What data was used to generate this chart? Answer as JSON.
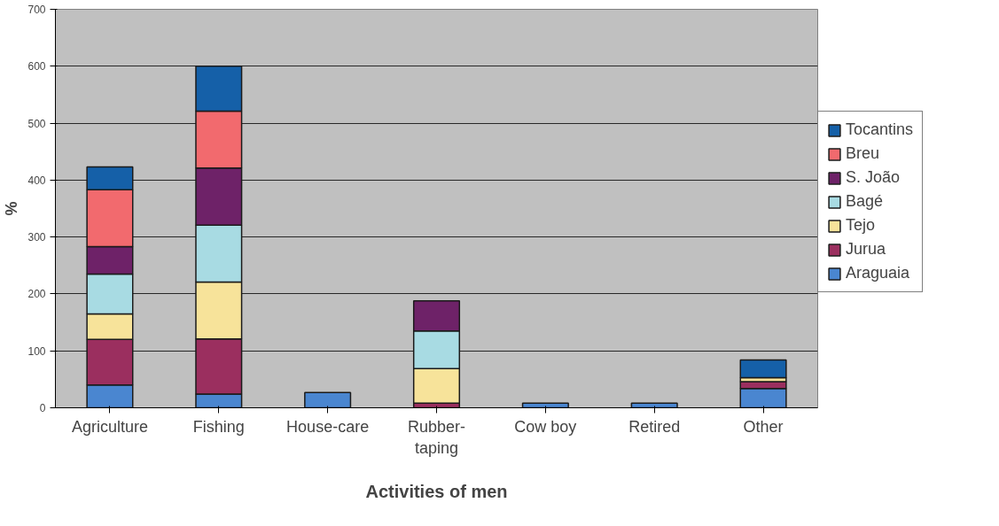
{
  "chart_data": {
    "type": "bar",
    "stacked": true,
    "xlabel": "Activities of men",
    "ylabel": "%",
    "categories": [
      "Agriculture",
      "Fishing",
      "House-care",
      "Rubber-taping",
      "Cow boy",
      "Retired",
      "Other"
    ],
    "series": [
      {
        "name": "Araguaia",
        "color": "#4a86d0",
        "values": [
          40,
          24,
          27,
          0,
          8,
          8,
          34
        ]
      },
      {
        "name": "Jurua",
        "color": "#9b2f5f",
        "values": [
          80,
          97,
          0,
          8,
          0,
          0,
          12
        ]
      },
      {
        "name": "Tejo",
        "color": "#f7e39a",
        "values": [
          45,
          100,
          0,
          61,
          0,
          0,
          7
        ]
      },
      {
        "name": "Bagé",
        "color": "#a8dbe3",
        "values": [
          70,
          100,
          0,
          66,
          0,
          0,
          0
        ]
      },
      {
        "name": "S. João",
        "color": "#6e2268",
        "values": [
          48,
          100,
          0,
          53,
          0,
          0,
          0
        ]
      },
      {
        "name": "Breu",
        "color": "#f26a6e",
        "values": [
          100,
          100,
          0,
          0,
          0,
          0,
          0
        ]
      },
      {
        "name": "Tocantins",
        "color": "#1560a8",
        "values": [
          40,
          79,
          0,
          0,
          0,
          0,
          31
        ]
      }
    ],
    "ylim": [
      0,
      700
    ],
    "yticks": [
      0,
      100,
      200,
      300,
      400,
      500,
      600,
      700
    ],
    "grid": "y",
    "legend": "right"
  }
}
